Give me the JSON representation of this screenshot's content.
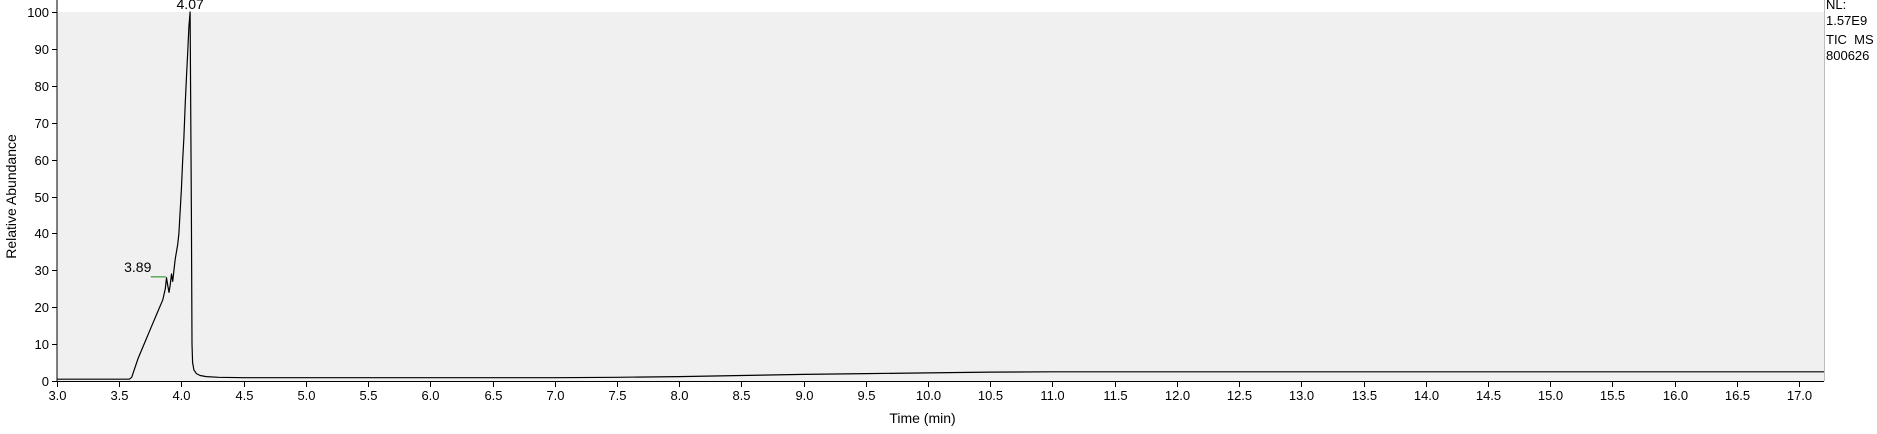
{
  "chart_data": {
    "type": "line",
    "title": "",
    "xlabel": "Time (min)",
    "ylabel": "Relative Abundance",
    "xlim": [
      3.0,
      17.2
    ],
    "ylim": [
      0,
      100
    ],
    "x_ticks": [
      3.0,
      3.5,
      4.0,
      4.5,
      5.0,
      5.5,
      6.0,
      6.5,
      7.0,
      7.5,
      8.0,
      8.5,
      9.0,
      9.5,
      10.0,
      10.5,
      11.0,
      11.5,
      12.0,
      12.5,
      13.0,
      13.5,
      14.0,
      14.5,
      15.0,
      15.5,
      16.0,
      16.5,
      17.0
    ],
    "x_tick_labels": [
      "3.0",
      "3.5",
      "4.0",
      "4.5",
      "5.0",
      "5.5",
      "6.0",
      "6.5",
      "7.0",
      "7.5",
      "8.0",
      "8.5",
      "9.0",
      "9.5",
      "10.0",
      "10.5",
      "11.0",
      "11.5",
      "12.0",
      "12.5",
      "13.0",
      "13.5",
      "14.0",
      "14.5",
      "15.0",
      "15.5",
      "16.0",
      "16.5",
      "17.0"
    ],
    "y_ticks": [
      0,
      10,
      20,
      30,
      40,
      50,
      60,
      70,
      80,
      90,
      100
    ],
    "y_tick_labels": [
      "0",
      "10",
      "20",
      "30",
      "40",
      "50",
      "60",
      "70",
      "80",
      "90",
      "100"
    ],
    "grid": false,
    "line_color": "#000000",
    "plot_background": "#f0f0f0",
    "peak_marker_color": "#3a9a3a",
    "peaks": [
      {
        "label": "4.07",
        "x": 4.07,
        "y": 100
      },
      {
        "label": "3.89",
        "x": 3.89,
        "y": 28.5
      }
    ],
    "series": [
      {
        "x": [
          3.0,
          3.5,
          3.55,
          3.58,
          3.6,
          3.65,
          3.7,
          3.75,
          3.8,
          3.85,
          3.87,
          3.88,
          3.89,
          3.9,
          3.91,
          3.92,
          3.93,
          3.95,
          3.97,
          3.98,
          4.0,
          4.01,
          4.02,
          4.03,
          4.04,
          4.05,
          4.06,
          4.07,
          4.08,
          4.085,
          4.09,
          4.1,
          4.12,
          4.15,
          4.2,
          4.3,
          4.5,
          5.0,
          6.0,
          7.0,
          7.5,
          8.0,
          8.5,
          9.0,
          9.5,
          10.0,
          10.5,
          11.0,
          12.0,
          13.0,
          14.0,
          15.0,
          16.0,
          17.0,
          17.2
        ],
        "y": [
          0.5,
          0.5,
          0.5,
          0.5,
          1,
          6,
          10,
          14,
          18,
          22,
          25,
          28,
          26,
          24,
          26,
          29,
          27,
          33,
          37,
          40,
          52,
          60,
          66,
          75,
          82,
          89,
          96,
          100,
          45,
          10,
          5,
          3,
          2,
          1.5,
          1.2,
          1,
          0.9,
          0.9,
          0.9,
          0.9,
          1,
          1.2,
          1.5,
          1.8,
          2,
          2.2,
          2.4,
          2.5,
          2.5,
          2.5,
          2.5,
          2.5,
          2.5,
          2.5,
          2.5
        ]
      }
    ]
  },
  "nl_annotation": {
    "line1": "NL:",
    "line2": "1.57E9",
    "line3": "TIC  MS",
    "line4": "800626"
  }
}
